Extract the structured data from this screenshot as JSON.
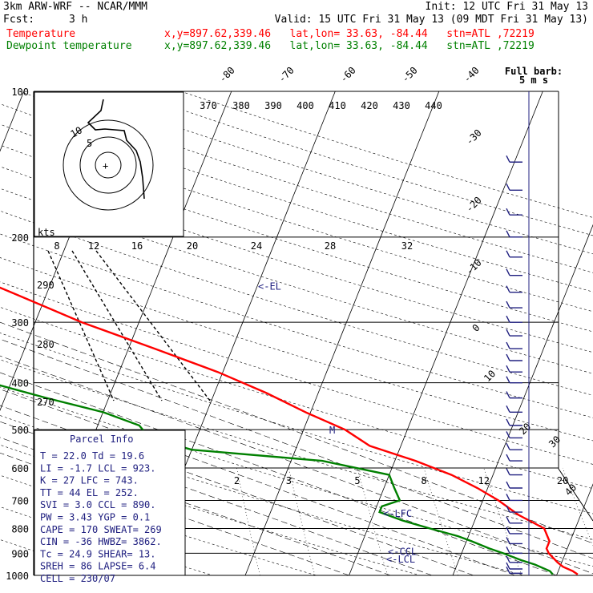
{
  "header": {
    "model": "3km ARW-WRF -- NCAR/MMM",
    "init": "Init: 12 UTC Fri 31 May 13",
    "fcst_label": "Fcst:",
    "fcst_value": "3 h",
    "valid": "Valid: 15 UTC Fri 31 May 13 (09 MDT Fri 31 May 13)",
    "temp_label": "Temperature",
    "dew_label": "Dewpoint temperature",
    "point_info": "x,y=897.62,339.46   lat,lon= 33.63, -84.44   stn=ATL ,72219"
  },
  "chart_data": {
    "type": "line",
    "title": "",
    "y_scale": "log-pressure",
    "pressure_ticks": [
      100,
      200,
      300,
      400,
      500,
      600,
      700,
      800,
      900,
      1000
    ],
    "isotherm_labels": [
      "-80",
      "-70",
      "-60",
      "-50",
      "-40",
      "-30",
      "-20",
      "-10",
      "0",
      "10",
      "20",
      "30",
      "40"
    ],
    "theta_labels": [
      "370",
      "380",
      "390",
      "400",
      "410",
      "420",
      "430",
      "440"
    ],
    "theta_left_labels": [
      "290",
      "280",
      "270"
    ],
    "hodograph_speed_labels": [
      "8",
      "12",
      "16",
      "20",
      "24",
      "28",
      "32"
    ],
    "hodograph_units": "kts",
    "mixing_ratio_labels": [
      "2",
      "3",
      "5",
      "8",
      "12",
      "20"
    ],
    "wind_barb_note": [
      "Full barb:",
      "5 m s"
    ],
    "series": [
      {
        "name": "Temperature",
        "color": "#ff0000",
        "points": [
          [
            100,
            -70.5
          ],
          [
            115,
            -67
          ],
          [
            135,
            -62.5
          ],
          [
            160,
            -58.5
          ],
          [
            180,
            -57.5
          ],
          [
            200,
            -56
          ],
          [
            230,
            -50.5
          ],
          [
            260,
            -43.5
          ],
          [
            300,
            -35.5
          ],
          [
            340,
            -27.5
          ],
          [
            380,
            -20.5
          ],
          [
            420,
            -15
          ],
          [
            460,
            -10.5
          ],
          [
            500,
            -6
          ],
          [
            540,
            -3
          ],
          [
            580,
            2
          ],
          [
            620,
            6
          ],
          [
            660,
            9
          ],
          [
            700,
            11.5
          ],
          [
            750,
            14
          ],
          [
            800,
            17
          ],
          [
            850,
            18
          ],
          [
            880,
            18
          ],
          [
            900,
            18.4
          ],
          [
            940,
            19.6
          ],
          [
            960,
            20.3
          ],
          [
            980,
            21.4
          ],
          [
            995,
            22
          ]
        ]
      },
      {
        "name": "Dewpoint temperature",
        "color": "#008000",
        "points": [
          [
            100,
            -80.5
          ],
          [
            120,
            -80
          ],
          [
            140,
            -80.5
          ],
          [
            160,
            -81.5
          ],
          [
            180,
            -82
          ],
          [
            200,
            -81
          ],
          [
            220,
            -78.5
          ],
          [
            250,
            -73
          ],
          [
            270,
            -71
          ],
          [
            300,
            -64.5
          ],
          [
            330,
            -56.5
          ],
          [
            360,
            -49
          ],
          [
            400,
            -42
          ],
          [
            430,
            -36
          ],
          [
            460,
            -30
          ],
          [
            490,
            -26
          ],
          [
            520,
            -24.5
          ],
          [
            550,
            -20
          ],
          [
            580,
            -7
          ],
          [
            620,
            0
          ],
          [
            660,
            1
          ],
          [
            700,
            2
          ],
          [
            720,
            0.5
          ],
          [
            740,
            0.5
          ],
          [
            770,
            3
          ],
          [
            800,
            6
          ],
          [
            830,
            9
          ],
          [
            850,
            10.5
          ],
          [
            880,
            12.5
          ],
          [
            900,
            14
          ],
          [
            930,
            16
          ],
          [
            950,
            17.5
          ],
          [
            980,
            19.2
          ],
          [
            995,
            19.6
          ]
        ]
      }
    ],
    "parcel_markers": [
      {
        "label": "<-EL",
        "p": 252
      },
      {
        "label": "M",
        "p": 500
      },
      {
        "label": "<-LFC",
        "p": 743
      },
      {
        "label": "<-CCL",
        "p": 890
      },
      {
        "label": "<-LCL",
        "p": 923
      }
    ],
    "hodograph": {
      "label_rings": [
        "5",
        "10"
      ]
    }
  },
  "parcel_info": {
    "title": "Parcel Info",
    "rows": [
      "T  =    22.0  Td =  19.6",
      "LI =    -1.7  LCL =  923.",
      "K  =      27  LFC =  743.",
      "TT =      44  EL  =  252.",
      "SVI =    3.0  CCL =  890.",
      "PW =    3.43  YGP =   0.1",
      "CAPE =   170  SWEAT=  269",
      "CIN =    -36  HWBZ= 3862.",
      "Tc =    24.9  SHEAR=  13.",
      "SREH =    86  LAPSE=  6.4",
      "CELL = 230/07"
    ]
  }
}
